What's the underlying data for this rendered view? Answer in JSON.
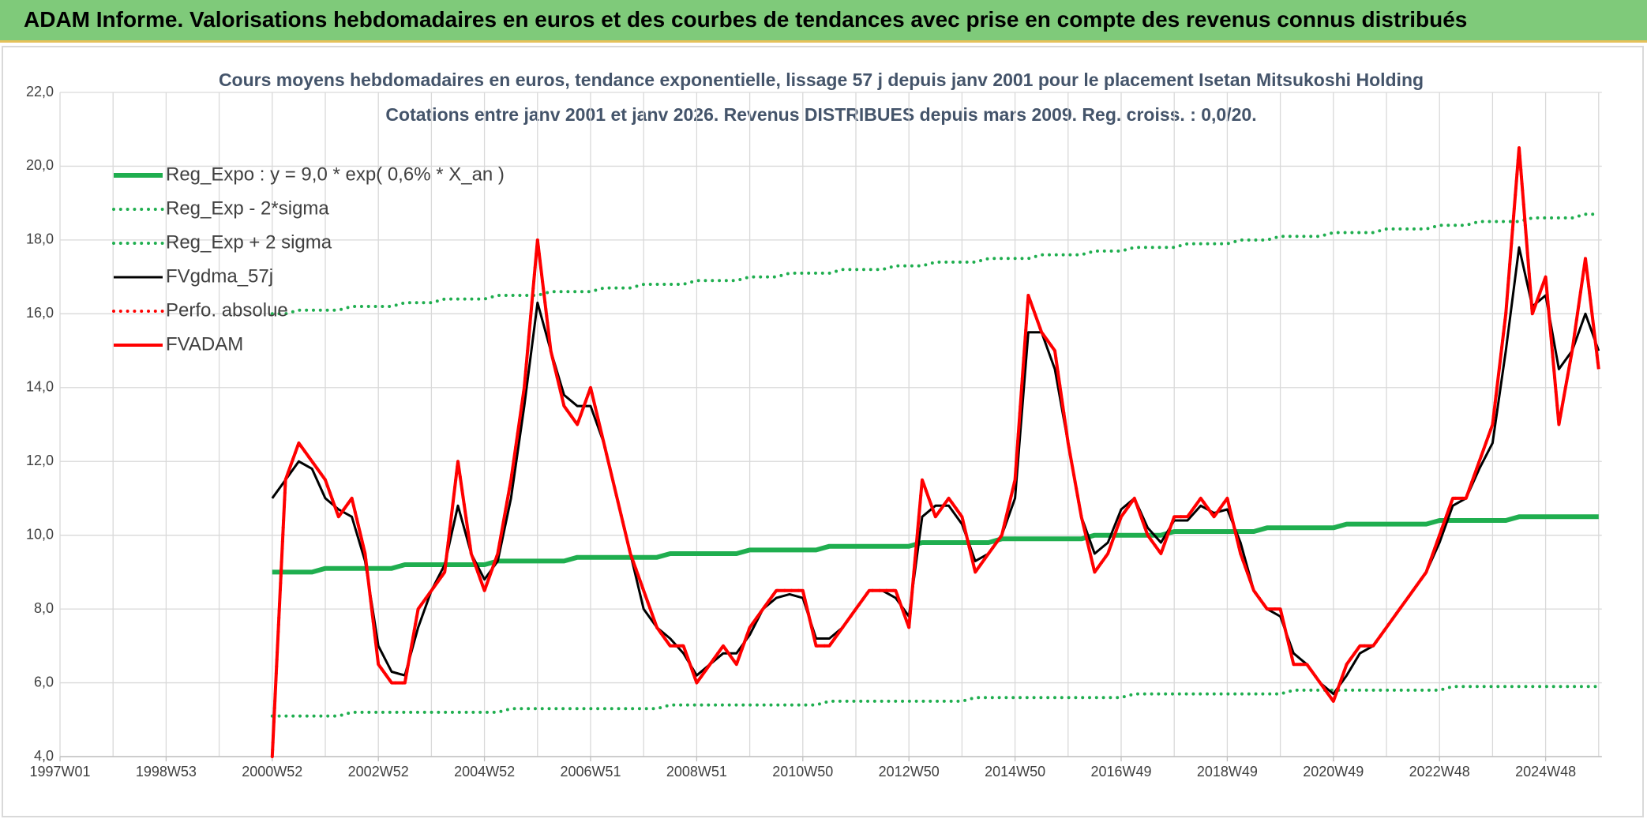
{
  "header": {
    "title": "ADAM Informe. Valorisations hebdomadaires en euros et des courbes de tendances avec prise en compte des revenus connus distribués"
  },
  "chart_data": {
    "type": "line",
    "title": "Cours moyens hebdomadaires en euros, tendance exponentielle, lissage 57 j depuis janv 2001 pour le placement Isetan Mitsukoshi Holding",
    "subtitle": "Cotations entre janv 2001 et janv 2026. Revenus DISTRIBUES depuis mars 2009. Reg. croiss. : 0,0/20.",
    "legend": "upper left",
    "grid": true,
    "ylim": [
      4,
      22
    ],
    "yticks": [
      {
        "value": 4,
        "label": "4,0"
      },
      {
        "value": 6,
        "label": "6,0"
      },
      {
        "value": 8,
        "label": "8,0"
      },
      {
        "value": 10,
        "label": "10,0"
      },
      {
        "value": 12,
        "label": "12,0"
      },
      {
        "value": 14,
        "label": "14,0"
      },
      {
        "value": 16,
        "label": "16,0"
      },
      {
        "value": 18,
        "label": "18,0"
      },
      {
        "value": 20,
        "label": "20,0"
      },
      {
        "value": 22,
        "label": "22,0"
      }
    ],
    "categories": [
      "1997W01",
      null,
      null,
      null,
      null,
      null,
      null,
      null,
      "1998W53",
      null,
      null,
      null,
      null,
      null,
      null,
      null,
      "2000W52",
      null,
      null,
      null,
      null,
      null,
      null,
      null,
      "2002W52",
      null,
      null,
      null,
      null,
      null,
      null,
      null,
      "2004W52",
      null,
      null,
      null,
      null,
      null,
      null,
      null,
      "2006W51",
      null,
      null,
      null,
      null,
      null,
      null,
      null,
      "2008W51",
      null,
      null,
      null,
      null,
      null,
      null,
      null,
      "2010W50",
      null,
      null,
      null,
      null,
      null,
      null,
      null,
      "2012W50",
      null,
      null,
      null,
      null,
      null,
      null,
      null,
      "2014W50",
      null,
      null,
      null,
      null,
      null,
      null,
      null,
      "2016W49",
      null,
      null,
      null,
      null,
      null,
      null,
      null,
      "2018W49",
      null,
      null,
      null,
      null,
      null,
      null,
      null,
      "2020W49",
      null,
      null,
      null,
      null,
      null,
      null,
      null,
      "2022W48",
      null,
      null,
      null,
      null,
      null,
      null,
      null,
      "2024W48",
      null,
      null,
      null,
      null
    ],
    "series": [
      {
        "name": "Reg_Expo : y = 9,0 * exp( 0,6% *  X_an )",
        "color": "#1fae4f",
        "style": "solid",
        "width": 6,
        "values": [
          null,
          null,
          null,
          null,
          null,
          null,
          null,
          null,
          null,
          null,
          null,
          null,
          null,
          null,
          null,
          null,
          9.0,
          9.0,
          9.0,
          9.0,
          9.1,
          9.1,
          9.1,
          9.1,
          9.1,
          9.1,
          9.2,
          9.2,
          9.2,
          9.2,
          9.2,
          9.2,
          9.2,
          9.3,
          9.3,
          9.3,
          9.3,
          9.3,
          9.3,
          9.4,
          9.4,
          9.4,
          9.4,
          9.4,
          9.4,
          9.4,
          9.5,
          9.5,
          9.5,
          9.5,
          9.5,
          9.5,
          9.6,
          9.6,
          9.6,
          9.6,
          9.6,
          9.6,
          9.7,
          9.7,
          9.7,
          9.7,
          9.7,
          9.7,
          9.7,
          9.8,
          9.8,
          9.8,
          9.8,
          9.8,
          9.8,
          9.9,
          9.9,
          9.9,
          9.9,
          9.9,
          9.9,
          9.9,
          10.0,
          10.0,
          10.0,
          10.0,
          10.0,
          10.0,
          10.1,
          10.1,
          10.1,
          10.1,
          10.1,
          10.1,
          10.1,
          10.2,
          10.2,
          10.2,
          10.2,
          10.2,
          10.2,
          10.3,
          10.3,
          10.3,
          10.3,
          10.3,
          10.3,
          10.3,
          10.4,
          10.4,
          10.4,
          10.4,
          10.4,
          10.4,
          10.5,
          10.5,
          10.5,
          10.5,
          10.5,
          10.5,
          10.5
        ]
      },
      {
        "name": "Reg_Exp - 2*sigma",
        "color": "#1fae4f",
        "style": "dotted",
        "width": 4,
        "values": [
          null,
          null,
          null,
          null,
          null,
          null,
          null,
          null,
          null,
          null,
          null,
          null,
          null,
          null,
          null,
          null,
          5.1,
          5.1,
          5.1,
          5.1,
          5.1,
          5.1,
          5.2,
          5.2,
          5.2,
          5.2,
          5.2,
          5.2,
          5.2,
          5.2,
          5.2,
          5.2,
          5.2,
          5.2,
          5.3,
          5.3,
          5.3,
          5.3,
          5.3,
          5.3,
          5.3,
          5.3,
          5.3,
          5.3,
          5.3,
          5.3,
          5.4,
          5.4,
          5.4,
          5.4,
          5.4,
          5.4,
          5.4,
          5.4,
          5.4,
          5.4,
          5.4,
          5.4,
          5.5,
          5.5,
          5.5,
          5.5,
          5.5,
          5.5,
          5.5,
          5.5,
          5.5,
          5.5,
          5.5,
          5.6,
          5.6,
          5.6,
          5.6,
          5.6,
          5.6,
          5.6,
          5.6,
          5.6,
          5.6,
          5.6,
          5.6,
          5.7,
          5.7,
          5.7,
          5.7,
          5.7,
          5.7,
          5.7,
          5.7,
          5.7,
          5.7,
          5.7,
          5.7,
          5.8,
          5.8,
          5.8,
          5.8,
          5.8,
          5.8,
          5.8,
          5.8,
          5.8,
          5.8,
          5.8,
          5.8,
          5.9,
          5.9,
          5.9,
          5.9,
          5.9,
          5.9,
          5.9,
          5.9,
          5.9,
          5.9,
          5.9,
          5.9
        ]
      },
      {
        "name": "Reg_Exp + 2 sigma",
        "color": "#1fae4f",
        "style": "dotted",
        "width": 4,
        "values": [
          null,
          null,
          null,
          null,
          null,
          null,
          null,
          null,
          null,
          null,
          null,
          null,
          null,
          null,
          null,
          null,
          16.0,
          16.0,
          16.1,
          16.1,
          16.1,
          16.1,
          16.2,
          16.2,
          16.2,
          16.2,
          16.3,
          16.3,
          16.3,
          16.4,
          16.4,
          16.4,
          16.4,
          16.5,
          16.5,
          16.5,
          16.5,
          16.6,
          16.6,
          16.6,
          16.6,
          16.7,
          16.7,
          16.7,
          16.8,
          16.8,
          16.8,
          16.8,
          16.9,
          16.9,
          16.9,
          16.9,
          17.0,
          17.0,
          17.0,
          17.1,
          17.1,
          17.1,
          17.1,
          17.2,
          17.2,
          17.2,
          17.2,
          17.3,
          17.3,
          17.3,
          17.4,
          17.4,
          17.4,
          17.4,
          17.5,
          17.5,
          17.5,
          17.5,
          17.6,
          17.6,
          17.6,
          17.6,
          17.7,
          17.7,
          17.7,
          17.8,
          17.8,
          17.8,
          17.8,
          17.9,
          17.9,
          17.9,
          17.9,
          18.0,
          18.0,
          18.0,
          18.1,
          18.1,
          18.1,
          18.1,
          18.2,
          18.2,
          18.2,
          18.2,
          18.3,
          18.3,
          18.3,
          18.3,
          18.4,
          18.4,
          18.4,
          18.5,
          18.5,
          18.5,
          18.5,
          18.6,
          18.6,
          18.6,
          18.6,
          18.7,
          18.7
        ]
      },
      {
        "name": "FVgdma_57j",
        "color": "#000000",
        "style": "solid",
        "width": 3,
        "values": [
          null,
          null,
          null,
          null,
          null,
          null,
          null,
          null,
          null,
          null,
          null,
          null,
          null,
          null,
          null,
          null,
          11.0,
          11.5,
          12.0,
          11.8,
          11.0,
          10.7,
          10.5,
          9.3,
          7.0,
          6.3,
          6.2,
          7.5,
          8.5,
          9.2,
          10.8,
          9.5,
          8.8,
          9.3,
          11.0,
          13.5,
          16.3,
          15.0,
          13.8,
          13.5,
          13.5,
          12.5,
          11.0,
          9.5,
          8.0,
          7.5,
          7.2,
          6.8,
          6.2,
          6.5,
          6.8,
          6.8,
          7.3,
          8.0,
          8.3,
          8.4,
          8.3,
          7.2,
          7.2,
          7.5,
          8.0,
          8.5,
          8.5,
          8.3,
          7.8,
          10.5,
          10.8,
          10.8,
          10.3,
          9.3,
          9.5,
          10.0,
          11.0,
          15.5,
          15.5,
          14.5,
          12.5,
          10.5,
          9.5,
          9.8,
          10.7,
          11.0,
          10.2,
          9.8,
          10.4,
          10.4,
          10.8,
          10.6,
          10.7,
          9.8,
          8.5,
          8.0,
          7.8,
          6.8,
          6.5,
          6.0,
          5.7,
          6.2,
          6.8,
          7.0,
          7.5,
          8.0,
          8.5,
          9.0,
          9.8,
          10.8,
          11.0,
          11.8,
          12.5,
          15.0,
          17.8,
          16.2,
          16.5,
          14.5,
          15.0,
          16.0,
          15.0
        ]
      },
      {
        "name": "Perfo. absolue",
        "color": "#ff0000",
        "style": "dotted",
        "width": 4,
        "values": [
          null,
          null,
          null,
          null,
          null,
          null,
          null,
          null,
          null,
          null,
          null,
          null,
          null,
          null,
          null,
          null,
          4.0,
          11.5,
          12.5,
          12.0,
          11.5,
          10.5,
          11.0,
          9.5,
          6.5,
          6.0,
          6.0,
          8.0,
          8.5,
          9.0,
          12.0,
          9.5,
          8.5,
          9.5,
          11.5,
          14.0,
          18.0,
          15.0,
          13.5,
          13.0,
          14.0,
          12.5,
          11.0,
          9.5,
          8.5,
          7.5,
          7.0,
          7.0,
          6.0,
          6.5,
          7.0,
          6.5,
          7.5,
          8.0,
          8.5,
          8.5,
          8.5,
          7.0,
          7.0,
          7.5,
          8.0,
          8.5,
          8.5,
          8.5,
          7.5,
          11.5,
          10.5,
          11.0,
          10.5,
          9.0,
          9.5,
          10.0,
          11.5,
          16.5,
          15.5,
          15.0,
          12.5,
          10.5,
          9.0,
          9.5,
          10.5,
          11.0,
          10.0,
          9.5,
          10.5,
          10.5,
          11.0,
          10.5,
          11.0,
          9.5,
          8.5,
          8.0,
          8.0,
          6.5,
          6.5,
          6.0,
          5.5,
          6.5,
          7.0,
          7.0,
          7.5,
          8.0,
          8.5,
          9.0,
          10.0,
          11.0,
          11.0,
          12.0,
          13.0,
          16.0,
          20.5,
          16.0,
          17.0,
          13.0,
          15.0,
          17.5,
          14.5
        ]
      },
      {
        "name": "FVADAM",
        "color": "#ff0000",
        "style": "solid",
        "width": 4,
        "values": [
          null,
          null,
          null,
          null,
          null,
          null,
          null,
          null,
          null,
          null,
          null,
          null,
          null,
          null,
          null,
          null,
          4.0,
          11.5,
          12.5,
          12.0,
          11.5,
          10.5,
          11.0,
          9.5,
          6.5,
          6.0,
          6.0,
          8.0,
          8.5,
          9.0,
          12.0,
          9.5,
          8.5,
          9.5,
          11.5,
          14.0,
          18.0,
          15.0,
          13.5,
          13.0,
          14.0,
          12.5,
          11.0,
          9.5,
          8.5,
          7.5,
          7.0,
          7.0,
          6.0,
          6.5,
          7.0,
          6.5,
          7.5,
          8.0,
          8.5,
          8.5,
          8.5,
          7.0,
          7.0,
          7.5,
          8.0,
          8.5,
          8.5,
          8.5,
          7.5,
          11.5,
          10.5,
          11.0,
          10.5,
          9.0,
          9.5,
          10.0,
          11.5,
          16.5,
          15.5,
          15.0,
          12.5,
          10.5,
          9.0,
          9.5,
          10.5,
          11.0,
          10.0,
          9.5,
          10.5,
          10.5,
          11.0,
          10.5,
          11.0,
          9.5,
          8.5,
          8.0,
          8.0,
          6.5,
          6.5,
          6.0,
          5.5,
          6.5,
          7.0,
          7.0,
          7.5,
          8.0,
          8.5,
          9.0,
          10.0,
          11.0,
          11.0,
          12.0,
          13.0,
          16.0,
          20.5,
          16.0,
          17.0,
          13.0,
          15.0,
          17.5,
          14.5
        ]
      }
    ]
  }
}
